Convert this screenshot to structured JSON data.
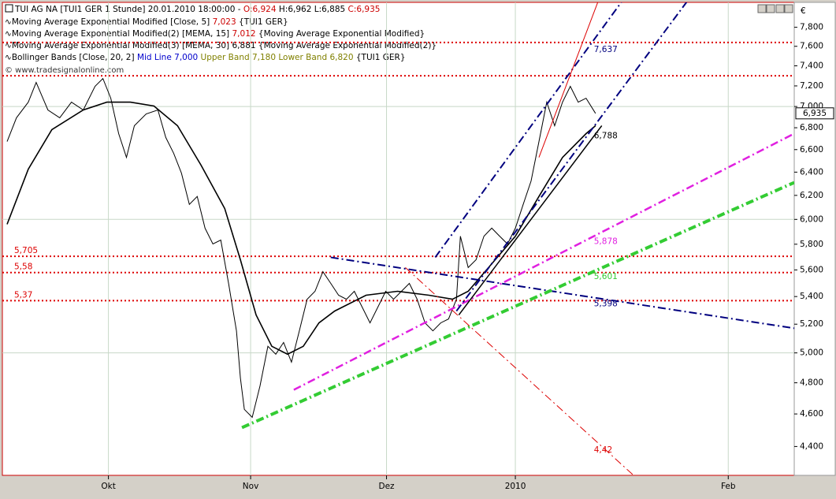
{
  "chart_data": {
    "type": "line",
    "title": "TUI AG NA [TUI1 GER  1 Stunde] 20.01.2010 18:00:00 -",
    "ohlc": [
      "O:6,924",
      "H:6,962",
      "L:6,885",
      "C:6,935"
    ],
    "legend": [
      {
        "name": "Moving Average Exponential Modified [Close, 5]",
        "value": "7,023",
        "extra": "{TUI1 GER}"
      },
      {
        "name": "Moving Average Exponential Modified(2) [MEMA, 15]",
        "value": "7,012",
        "extra": "{Moving Average Exponential Modified}"
      },
      {
        "name": "Moving Average Exponential Modified(3) [MEMA, 30]",
        "value": "6,881",
        "extra": "{Moving Average Exponential Modified(2)}"
      },
      {
        "name": "Bollinger Bands [Close, 20, 2]",
        "mid": "Mid Line 7,000",
        "upper": "Upper Band 7,180",
        "lower": "Lower Band 6,820",
        "extra": "{TUI1 GER}"
      }
    ],
    "watermark": "© www.tradesignalonline.com",
    "axis_unit": "€",
    "log_scale": true,
    "ylim": [
      4230,
      8070
    ],
    "yticks": [
      {
        "value": 4400,
        "label": "4,400"
      },
      {
        "value": 4600,
        "label": "4,600"
      },
      {
        "value": 4800,
        "label": "4,800"
      },
      {
        "value": 5000,
        "label": "5,000"
      },
      {
        "value": 5200,
        "label": "5,200"
      },
      {
        "value": 5400,
        "label": "5,400"
      },
      {
        "value": 5600,
        "label": "5,600"
      },
      {
        "value": 5800,
        "label": "5,800"
      },
      {
        "value": 6000,
        "label": "6,000"
      },
      {
        "value": 6200,
        "label": "6,200"
      },
      {
        "value": 6400,
        "label": "6,400"
      },
      {
        "value": 6600,
        "label": "6,600"
      },
      {
        "value": 6800,
        "label": "6,800"
      },
      {
        "value": 7000,
        "label": "7,000"
      },
      {
        "value": 7200,
        "label": "7,200"
      },
      {
        "value": 7400,
        "label": "7,400"
      },
      {
        "value": 7600,
        "label": "7,600"
      },
      {
        "value": 7800,
        "label": "7,800"
      }
    ],
    "ygrid": [
      5000,
      6000,
      7000
    ],
    "xlim": [
      -0.3,
      100.5
    ],
    "xticks": [
      {
        "value": 13.2,
        "label": "Okt"
      },
      {
        "value": 31.3,
        "label": "Nov"
      },
      {
        "value": 48.6,
        "label": "Dez"
      },
      {
        "value": 65,
        "label": "2010"
      },
      {
        "value": 92.1,
        "label": "Feb"
      }
    ],
    "last_price": {
      "value": 6935,
      "label": "6,935"
    },
    "series": [
      {
        "name": "TUI1 GER",
        "color": "#000000",
        "width": 1,
        "x": [
          0.3,
          1.5,
          3,
          4,
          5.5,
          7,
          8.5,
          10,
          11.5,
          12.5,
          13.5,
          14.5,
          15.5,
          16.5,
          18,
          19.5,
          20.5,
          21.5,
          22.5,
          23.5,
          24.5,
          25.5,
          26.5,
          27.5,
          28.5,
          29.5,
          30,
          30.5,
          31.5,
          32.5,
          33.5,
          34.5,
          35.5,
          36.5,
          37.5,
          38.5,
          39.5,
          40.5,
          41.5,
          42.5,
          43.5,
          44.5,
          45.5,
          46.5,
          47.5,
          48.5,
          49.5,
          50.5,
          51.5,
          52.5,
          53.5,
          54.5,
          55.5,
          56.5,
          57.5,
          58,
          59,
          60,
          61,
          62,
          63,
          64,
          65,
          66,
          67,
          68,
          69,
          70,
          71,
          72,
          73,
          74,
          75.2
        ],
        "values": [
          6673,
          6893,
          7042,
          7234,
          6967,
          6893,
          7042,
          6967,
          7196,
          7273,
          7080,
          6746,
          6530,
          6819,
          6930,
          6967,
          6710,
          6567,
          6391,
          6124,
          6191,
          5929,
          5802,
          5833,
          5498,
          5153,
          4832,
          4629,
          4579,
          4780,
          5045,
          4991,
          5072,
          4937,
          5153,
          5380,
          5439,
          5587,
          5498,
          5410,
          5380,
          5439,
          5323,
          5209,
          5323,
          5439,
          5380,
          5439,
          5498,
          5380,
          5209,
          5153,
          5209,
          5237,
          5380,
          5864,
          5618,
          5678,
          5864,
          5929,
          5864,
          5802,
          5929,
          6124,
          6323,
          6673,
          7042,
          6819,
          7042,
          7196,
          7042,
          7080,
          6935
        ]
      },
      {
        "name": "MEMA 30",
        "color": "#000000",
        "width": 1.6,
        "x": [
          0.3,
          3,
          6,
          10,
          13,
          16,
          19,
          22,
          25,
          28,
          30,
          32,
          34,
          36,
          38,
          40,
          42,
          46,
          50,
          54,
          57,
          59,
          62,
          65,
          68,
          71,
          74,
          75.2
        ],
        "values": [
          5960,
          6426,
          6782,
          6967,
          7042,
          7042,
          7005,
          6819,
          6461,
          6090,
          5678,
          5266,
          5045,
          4991,
          5045,
          5209,
          5294,
          5410,
          5439,
          5410,
          5380,
          5439,
          5647,
          5864,
          6191,
          6530,
          6746,
          6819
        ]
      }
    ],
    "hlines": [
      {
        "value": 7640,
        "color": "#dd0000"
      },
      {
        "value": 7300,
        "color": "#dd0000"
      },
      {
        "value": 5705,
        "label": "5,705",
        "color": "#dd0000"
      },
      {
        "value": 5580,
        "label": "5,58",
        "color": "#dd0000"
      },
      {
        "value": 5370,
        "label": "5,37",
        "color": "#dd0000"
      }
    ],
    "trendlines": [
      {
        "x": [
          41.5,
          100.5
        ],
        "y": [
          5697,
          5171
        ],
        "color": "#00007f",
        "style": "dashdot",
        "width": 2,
        "label": {
          "value": 5398,
          "label": "5,398"
        }
      },
      {
        "x": [
          36.8,
          100.5
        ],
        "y": [
          4754,
          6746
        ],
        "color": "#e020e0",
        "style": "dashdot",
        "width": 2.5,
        "label": {
          "value": 5878,
          "label": "5,878"
        }
      },
      {
        "x": [
          30.2,
          100.5
        ],
        "y": [
          4515,
          6310
        ],
        "color": "#33cc33",
        "style": "dashdot",
        "width": 4,
        "label": {
          "value": 5601,
          "label": "5,601"
        }
      },
      {
        "x": [
          54.8,
          78.5
        ],
        "y": [
          5697,
          8073
        ],
        "color": "#00007f",
        "style": "dashdot",
        "width": 2,
        "label": {
          "value": 7637,
          "label": "7,637"
        }
      },
      {
        "x": [
          57.5,
          86.8
        ],
        "y": [
          5294,
          8073
        ],
        "color": "#00007f",
        "style": "dashdot",
        "width": 2
      },
      {
        "x": [
          57.8,
          76
        ],
        "y": [
          5266,
          6819
        ],
        "color": "#000000",
        "style": "solid",
        "width": 1.5,
        "label": {
          "value": 6788,
          "label": "6,788"
        }
      },
      {
        "x": [
          68,
          75.5
        ],
        "y": [
          6530,
          8073
        ],
        "color": "#dd0000",
        "style": "solid",
        "width": 1
      },
      {
        "x": [
          51,
          80
        ],
        "y": [
          5618,
          4232
        ],
        "color": "#dd0000",
        "style": "dashdot",
        "width": 1,
        "label": {
          "value": 4420,
          "label": "4,42"
        }
      }
    ]
  }
}
